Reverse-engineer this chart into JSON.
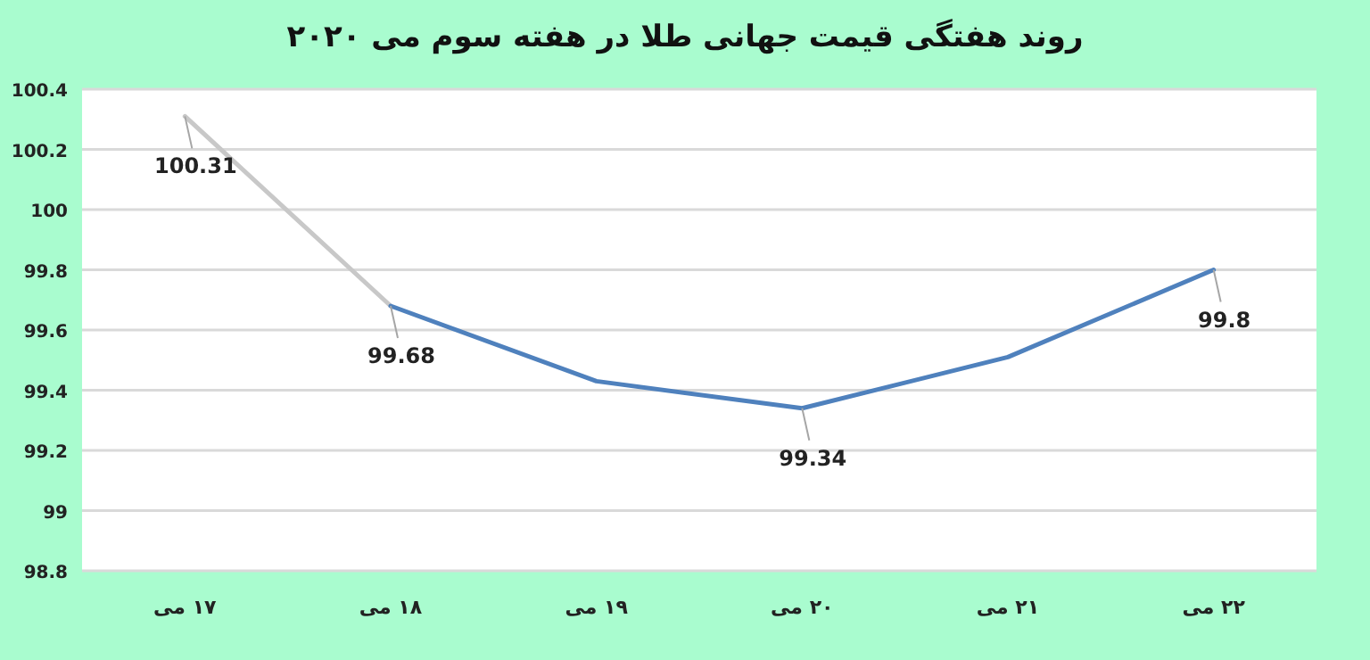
{
  "chart_data": {
    "type": "line",
    "title": "روند هفتگی قیمت جهانی طلا در هفته سوم می ۲۰۲۰",
    "categories": [
      "۱۷ می",
      "۱۸ می",
      "۱۹ می",
      "۲۰ می",
      "۲۱ می",
      "۲۲ می"
    ],
    "series": [
      {
        "color": "#c8c8c8",
        "values": [
          100.31,
          99.68,
          null,
          null,
          null,
          null
        ],
        "value_labels": [
          "100.31",
          "99.68",
          null,
          null,
          null,
          null
        ]
      },
      {
        "color": "#4f81bd",
        "values": [
          null,
          99.68,
          99.43,
          99.34,
          99.51,
          99.8
        ],
        "value_labels": [
          null,
          null,
          null,
          "99.34",
          null,
          "99.8"
        ]
      }
    ],
    "ylim": [
      98.8,
      100.4
    ],
    "yticks": [
      98.8,
      99,
      99.2,
      99.4,
      99.6,
      99.8,
      100,
      100.2,
      100.4
    ],
    "grid": "y",
    "marker": "none",
    "line_style": "solid"
  }
}
